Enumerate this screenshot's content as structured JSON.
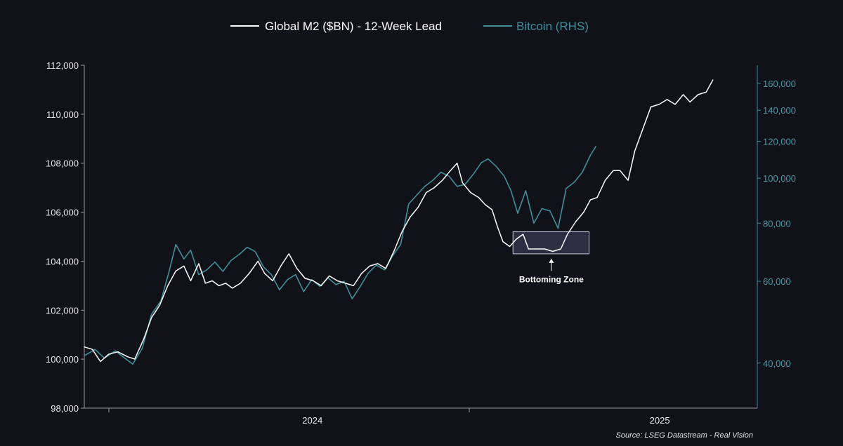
{
  "chart_data": {
    "type": "line",
    "title": "",
    "legend": {
      "position": "top-center",
      "entries": [
        {
          "name": "Global M2 ($BN) - 12-Week Lead",
          "color": "#ffffff"
        },
        {
          "name": "Bitcoin (RHS)",
          "color": "#3f8f99"
        }
      ]
    },
    "x_axis": {
      "ticks": [
        {
          "label": "2024",
          "t": 0.339
        },
        {
          "label": "2025",
          "t": 0.855
        }
      ]
    },
    "y_left": {
      "min": 98000,
      "max": 112000,
      "ticks": [
        {
          "v": 98000,
          "label": "98,000"
        },
        {
          "v": 100000,
          "label": "100,000"
        },
        {
          "v": 102000,
          "label": "102,000"
        },
        {
          "v": 104000,
          "label": "104,000"
        },
        {
          "v": 106000,
          "label": "106,000"
        },
        {
          "v": 108000,
          "label": "108,000"
        },
        {
          "v": 110000,
          "label": "110,000"
        },
        {
          "v": 112000,
          "label": "112,000"
        }
      ]
    },
    "y_right": {
      "scale": "log",
      "min": 32000,
      "max": 175000,
      "ticks": [
        {
          "v": 40000,
          "label": "40,000"
        },
        {
          "v": 60000,
          "label": "60,000"
        },
        {
          "v": 80000,
          "label": "80,000"
        },
        {
          "v": 100000,
          "label": "100,000"
        },
        {
          "v": 120000,
          "label": "120,000"
        },
        {
          "v": 140000,
          "label": "140,000"
        },
        {
          "v": 160000,
          "label": "160,000"
        }
      ]
    },
    "series": [
      {
        "name": "Global M2 ($BN) - 12-Week Lead",
        "axis": "left",
        "color": "#ffffff",
        "points": [
          [
            0.0,
            100500
          ],
          [
            0.012,
            100400
          ],
          [
            0.024,
            99900
          ],
          [
            0.036,
            100200
          ],
          [
            0.05,
            100300
          ],
          [
            0.064,
            100100
          ],
          [
            0.075,
            100000
          ],
          [
            0.088,
            100800
          ],
          [
            0.1,
            101700
          ],
          [
            0.112,
            102200
          ],
          [
            0.124,
            103000
          ],
          [
            0.136,
            103600
          ],
          [
            0.148,
            103800
          ],
          [
            0.158,
            103200
          ],
          [
            0.17,
            103900
          ],
          [
            0.18,
            103100
          ],
          [
            0.19,
            103200
          ],
          [
            0.2,
            103000
          ],
          [
            0.21,
            103100
          ],
          [
            0.22,
            102900
          ],
          [
            0.232,
            103100
          ],
          [
            0.245,
            103500
          ],
          [
            0.258,
            104000
          ],
          [
            0.268,
            103500
          ],
          [
            0.28,
            103200
          ],
          [
            0.292,
            103800
          ],
          [
            0.304,
            104300
          ],
          [
            0.316,
            103700
          ],
          [
            0.328,
            103300
          ],
          [
            0.34,
            103200
          ],
          [
            0.352,
            103000
          ],
          [
            0.364,
            103400
          ],
          [
            0.376,
            103200
          ],
          [
            0.388,
            103100
          ],
          [
            0.4,
            103000
          ],
          [
            0.412,
            103500
          ],
          [
            0.424,
            103800
          ],
          [
            0.436,
            103900
          ],
          [
            0.448,
            103700
          ],
          [
            0.46,
            104400
          ],
          [
            0.472,
            105200
          ],
          [
            0.484,
            105800
          ],
          [
            0.496,
            106200
          ],
          [
            0.508,
            106800
          ],
          [
            0.52,
            107000
          ],
          [
            0.532,
            107300
          ],
          [
            0.544,
            107700
          ],
          [
            0.554,
            108000
          ],
          [
            0.562,
            107200
          ],
          [
            0.574,
            106800
          ],
          [
            0.586,
            106600
          ],
          [
            0.596,
            106300
          ],
          [
            0.606,
            106100
          ],
          [
            0.614,
            105400
          ],
          [
            0.622,
            104800
          ],
          [
            0.632,
            104600
          ],
          [
            0.642,
            104900
          ],
          [
            0.652,
            105100
          ],
          [
            0.66,
            104500
          ],
          [
            0.672,
            104500
          ],
          [
            0.684,
            104500
          ],
          [
            0.696,
            104400
          ],
          [
            0.708,
            104500
          ],
          [
            0.718,
            105100
          ],
          [
            0.73,
            105600
          ],
          [
            0.742,
            106000
          ],
          [
            0.752,
            106500
          ],
          [
            0.762,
            106600
          ],
          [
            0.774,
            107300
          ],
          [
            0.786,
            107700
          ],
          [
            0.796,
            107700
          ],
          [
            0.808,
            107300
          ],
          [
            0.818,
            108500
          ],
          [
            0.83,
            109400
          ],
          [
            0.842,
            110300
          ],
          [
            0.854,
            110400
          ],
          [
            0.866,
            110600
          ],
          [
            0.878,
            110400
          ],
          [
            0.89,
            110800
          ],
          [
            0.9,
            110500
          ],
          [
            0.912,
            110800
          ],
          [
            0.924,
            110900
          ],
          [
            0.934,
            111400
          ]
        ]
      },
      {
        "name": "Bitcoin (RHS)",
        "axis": "right",
        "color": "#3f8f99",
        "points": [
          [
            0.0,
            41500
          ],
          [
            0.016,
            42800
          ],
          [
            0.03,
            41000
          ],
          [
            0.046,
            42500
          ],
          [
            0.058,
            41200
          ],
          [
            0.072,
            39800
          ],
          [
            0.086,
            43000
          ],
          [
            0.1,
            51000
          ],
          [
            0.114,
            54500
          ],
          [
            0.126,
            63000
          ],
          [
            0.136,
            72000
          ],
          [
            0.148,
            67000
          ],
          [
            0.158,
            70000
          ],
          [
            0.17,
            62000
          ],
          [
            0.182,
            63500
          ],
          [
            0.194,
            66000
          ],
          [
            0.206,
            63000
          ],
          [
            0.218,
            66500
          ],
          [
            0.23,
            68500
          ],
          [
            0.242,
            71000
          ],
          [
            0.254,
            69500
          ],
          [
            0.266,
            64500
          ],
          [
            0.278,
            62000
          ],
          [
            0.29,
            57500
          ],
          [
            0.302,
            60500
          ],
          [
            0.314,
            62000
          ],
          [
            0.326,
            57000
          ],
          [
            0.338,
            60500
          ],
          [
            0.35,
            58500
          ],
          [
            0.362,
            61000
          ],
          [
            0.374,
            59000
          ],
          [
            0.386,
            60000
          ],
          [
            0.398,
            55000
          ],
          [
            0.41,
            58500
          ],
          [
            0.422,
            62500
          ],
          [
            0.434,
            65000
          ],
          [
            0.446,
            63500
          ],
          [
            0.458,
            68000
          ],
          [
            0.47,
            72000
          ],
          [
            0.482,
            88000
          ],
          [
            0.494,
            92000
          ],
          [
            0.506,
            96000
          ],
          [
            0.518,
            99000
          ],
          [
            0.53,
            103000
          ],
          [
            0.542,
            101000
          ],
          [
            0.554,
            96000
          ],
          [
            0.566,
            97000
          ],
          [
            0.578,
            102000
          ],
          [
            0.59,
            108000
          ],
          [
            0.6,
            110000
          ],
          [
            0.612,
            106000
          ],
          [
            0.624,
            101000
          ],
          [
            0.634,
            94000
          ],
          [
            0.644,
            84000
          ],
          [
            0.656,
            94000
          ],
          [
            0.668,
            80000
          ],
          [
            0.68,
            86000
          ],
          [
            0.692,
            85000
          ],
          [
            0.704,
            78000
          ],
          [
            0.716,
            95000
          ],
          [
            0.728,
            98000
          ],
          [
            0.74,
            103000
          ],
          [
            0.752,
            112000
          ],
          [
            0.76,
            117000
          ]
        ]
      }
    ],
    "annotations": [
      {
        "type": "rect",
        "x_from": 0.637,
        "x_to": 0.75,
        "y_from": 104300,
        "y_to": 105200,
        "fill": "rgba(150,150,210,0.22)",
        "stroke": "#c9c9dd"
      },
      {
        "type": "arrow",
        "x": 0.694,
        "y_from": 103600,
        "y_to": 104100,
        "label": "Bottoming Zone"
      }
    ],
    "source": "Source: LSEG Datastream - Real Vision"
  }
}
